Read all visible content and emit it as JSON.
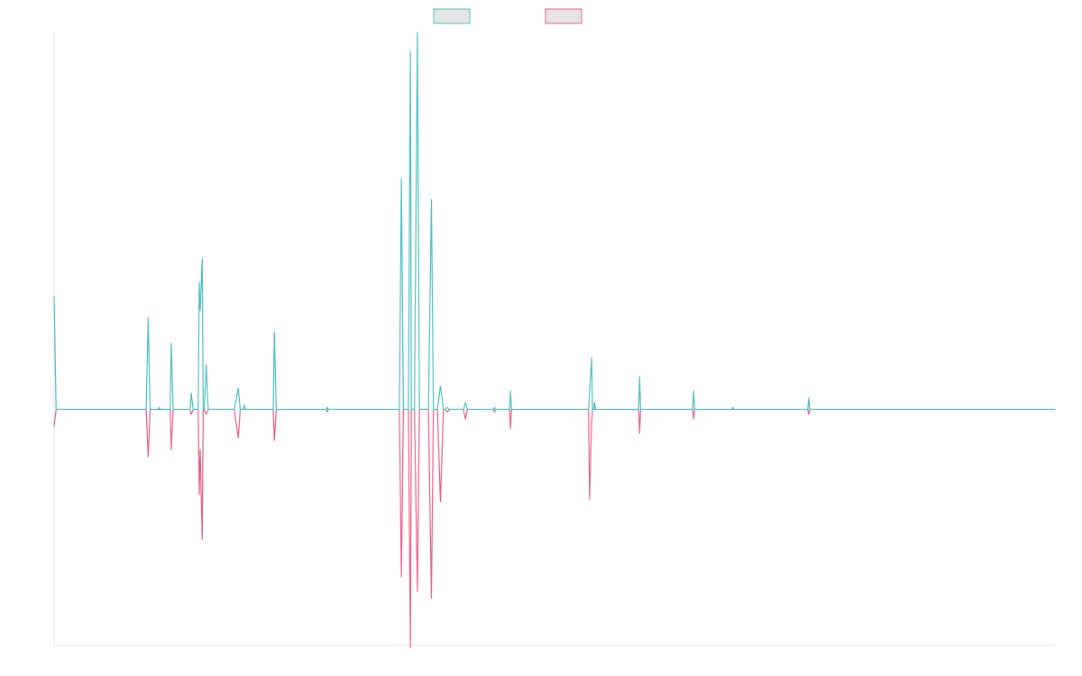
{
  "chart_data": {
    "type": "line",
    "title": "",
    "xlabel": "",
    "ylabel": "",
    "grid": false,
    "legend_position": "top",
    "x_range": [
      0,
      1000
    ],
    "ylim": [
      -100,
      160
    ],
    "series": [
      {
        "color": "#4bbfbd",
        "legend_fill": "#e5e5e5",
        "points": [
          [
            0,
            48
          ],
          [
            2,
            0
          ],
          [
            88,
            0
          ],
          [
            92,
            0
          ],
          [
            94,
            39
          ],
          [
            96,
            0
          ],
          [
            104,
            0
          ],
          [
            105,
            1
          ],
          [
            106,
            0
          ],
          [
            113,
            0
          ],
          [
            116,
            0
          ],
          [
            117,
            28
          ],
          [
            119,
            0
          ],
          [
            136,
            0
          ],
          [
            137,
            7
          ],
          [
            139,
            0
          ],
          [
            144,
            0
          ],
          [
            145,
            54
          ],
          [
            146,
            42
          ],
          [
            148,
            64
          ],
          [
            149,
            0
          ],
          [
            150,
            0
          ],
          [
            152,
            19
          ],
          [
            154,
            0
          ],
          [
            180,
            0
          ],
          [
            184,
            9
          ],
          [
            186,
            0
          ],
          [
            189,
            0
          ],
          [
            190,
            2
          ],
          [
            191,
            0
          ],
          [
            219,
            0
          ],
          [
            220,
            33
          ],
          [
            222,
            0
          ],
          [
            272,
            0
          ],
          [
            273,
            1
          ],
          [
            274,
            0
          ],
          [
            345,
            0
          ],
          [
            347,
            98
          ],
          [
            349,
            0
          ],
          [
            354,
            0
          ],
          [
            356,
            152
          ],
          [
            357,
            0
          ],
          [
            360,
            0
          ],
          [
            363,
            160
          ],
          [
            365,
            0
          ],
          [
            374,
            0
          ],
          [
            377,
            89
          ],
          [
            379,
            0
          ],
          [
            383,
            0
          ],
          [
            386,
            10
          ],
          [
            389,
            0
          ],
          [
            391,
            0
          ],
          [
            393,
            1
          ],
          [
            395,
            0
          ],
          [
            409,
            0
          ],
          [
            411,
            3
          ],
          [
            413,
            0
          ],
          [
            439,
            0
          ],
          [
            440,
            1
          ],
          [
            441,
            0
          ],
          [
            455,
            0
          ],
          [
            456,
            8
          ],
          [
            457,
            0
          ],
          [
            473,
            0
          ],
          [
            474,
            0
          ],
          [
            475,
            0
          ],
          [
            534,
            0
          ],
          [
            537,
            22
          ],
          [
            538,
            0
          ],
          [
            539,
            0
          ],
          [
            540,
            3
          ],
          [
            541,
            0
          ],
          [
            584,
            0
          ],
          [
            585,
            14
          ],
          [
            586,
            0
          ],
          [
            638,
            0
          ],
          [
            639,
            8
          ],
          [
            640,
            0
          ],
          [
            677,
            0
          ],
          [
            678,
            1
          ],
          [
            679,
            0
          ],
          [
            753,
            0
          ],
          [
            754,
            5
          ],
          [
            755,
            0
          ],
          [
            1000,
            0
          ]
        ]
      },
      {
        "color": "#ec5d84",
        "legend_fill": "#e5e5e5",
        "points": [
          [
            0,
            -7
          ],
          [
            2,
            0
          ],
          [
            88,
            0
          ],
          [
            92,
            0
          ],
          [
            94,
            -20
          ],
          [
            96,
            0
          ],
          [
            104,
            0
          ],
          [
            105,
            0
          ],
          [
            106,
            0
          ],
          [
            113,
            0
          ],
          [
            116,
            0
          ],
          [
            117,
            -17
          ],
          [
            119,
            0
          ],
          [
            136,
            0
          ],
          [
            137,
            -2
          ],
          [
            139,
            0
          ],
          [
            144,
            0
          ],
          [
            145,
            -36
          ],
          [
            146,
            -17
          ],
          [
            148,
            -55
          ],
          [
            149,
            0
          ],
          [
            150,
            0
          ],
          [
            152,
            -2
          ],
          [
            154,
            0
          ],
          [
            180,
            0
          ],
          [
            184,
            -12
          ],
          [
            186,
            0
          ],
          [
            189,
            0
          ],
          [
            190,
            0
          ],
          [
            191,
            0
          ],
          [
            219,
            0
          ],
          [
            220,
            -13
          ],
          [
            222,
            0
          ],
          [
            272,
            0
          ],
          [
            273,
            -1
          ],
          [
            274,
            0
          ],
          [
            345,
            0
          ],
          [
            347,
            -71
          ],
          [
            349,
            0
          ],
          [
            354,
            0
          ],
          [
            356,
            -101
          ],
          [
            357,
            0
          ],
          [
            360,
            0
          ],
          [
            363,
            -77
          ],
          [
            365,
            0
          ],
          [
            374,
            0
          ],
          [
            377,
            -80
          ],
          [
            379,
            0
          ],
          [
            383,
            0
          ],
          [
            386,
            -39
          ],
          [
            389,
            0
          ],
          [
            391,
            0
          ],
          [
            393,
            -1
          ],
          [
            395,
            0
          ],
          [
            409,
            0
          ],
          [
            411,
            -4
          ],
          [
            413,
            0
          ],
          [
            439,
            0
          ],
          [
            440,
            -1
          ],
          [
            441,
            0
          ],
          [
            455,
            0
          ],
          [
            456,
            -8
          ],
          [
            457,
            0
          ],
          [
            473,
            0
          ],
          [
            474,
            0
          ],
          [
            475,
            0
          ],
          [
            534,
            0
          ],
          [
            535,
            -38
          ],
          [
            537,
            -6
          ],
          [
            538,
            0
          ],
          [
            539,
            0
          ],
          [
            540,
            0
          ],
          [
            541,
            0
          ],
          [
            584,
            0
          ],
          [
            585,
            -10
          ],
          [
            586,
            0
          ],
          [
            638,
            0
          ],
          [
            639,
            -4
          ],
          [
            640,
            0
          ],
          [
            677,
            0
          ],
          [
            678,
            0
          ],
          [
            679,
            0
          ],
          [
            753,
            0
          ],
          [
            754,
            -2
          ],
          [
            755,
            0
          ],
          [
            1000,
            0
          ]
        ]
      }
    ]
  }
}
